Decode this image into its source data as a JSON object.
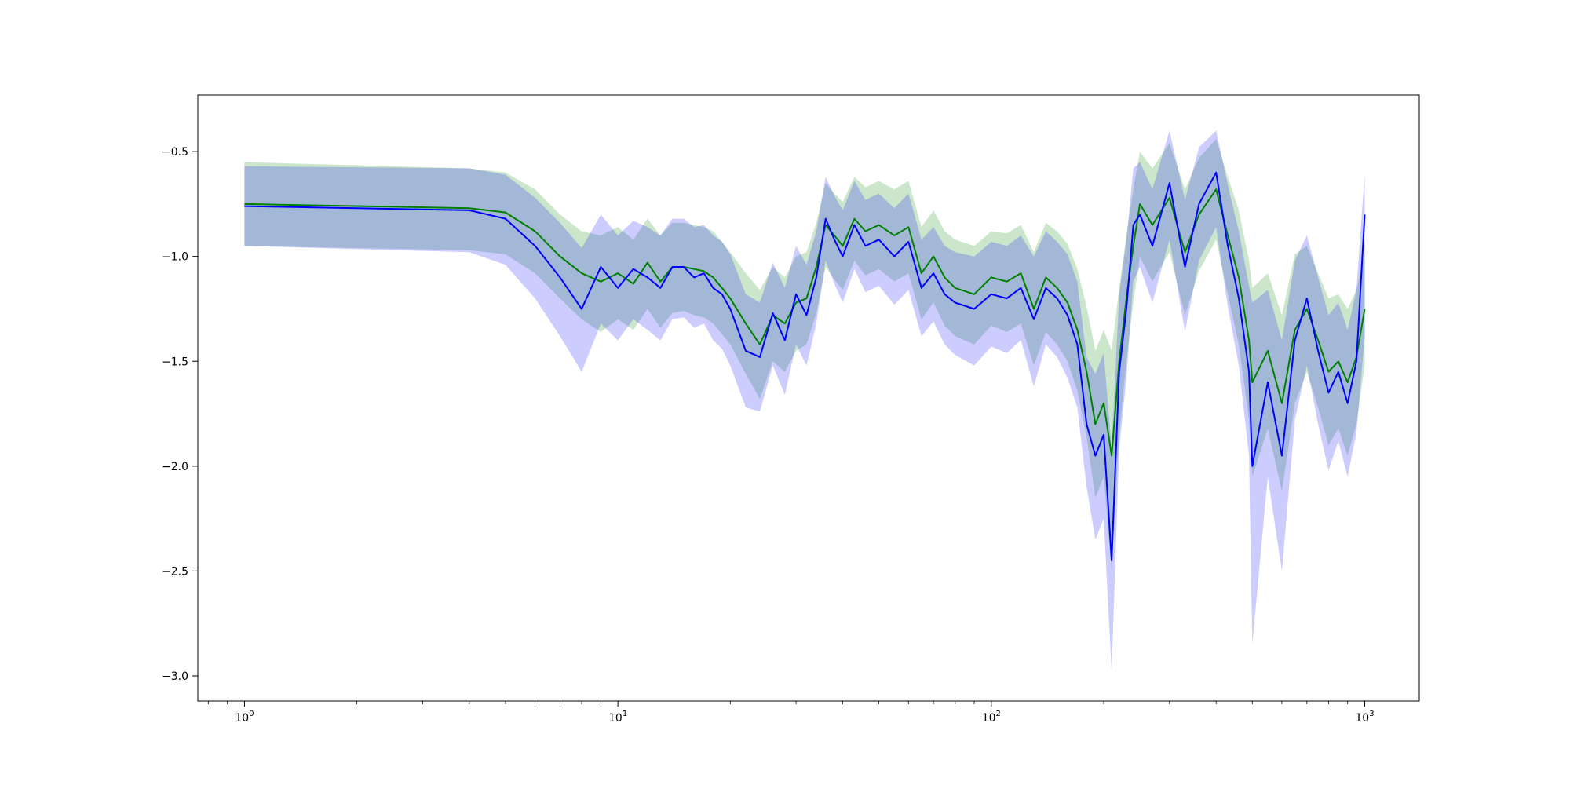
{
  "chart_data": {
    "type": "line",
    "title": "",
    "xlabel": "",
    "ylabel": "",
    "xscale": "log",
    "xlim": [
      0.75,
      1400
    ],
    "ylim": [
      -3.12,
      -0.23
    ],
    "grid": false,
    "legend": "none",
    "x_ticks": [
      {
        "value": 1,
        "base": "10",
        "exp": "0"
      },
      {
        "value": 10,
        "base": "10",
        "exp": "1"
      },
      {
        "value": 100,
        "base": "10",
        "exp": "2"
      },
      {
        "value": 1000,
        "base": "10",
        "exp": "3"
      }
    ],
    "y_ticks": [
      {
        "value": -0.5,
        "label": "−0.5"
      },
      {
        "value": -1.0,
        "label": "−1.0"
      },
      {
        "value": -1.5,
        "label": "−1.5"
      },
      {
        "value": -2.0,
        "label": "−2.0"
      },
      {
        "value": -2.5,
        "label": "−2.5"
      },
      {
        "value": -3.0,
        "label": "−3.0"
      }
    ],
    "series": [
      {
        "color": "#008000",
        "band_color": "#008000",
        "band_opacity": 0.2,
        "x": [
          1,
          4,
          5,
          6,
          7,
          8,
          9,
          10,
          11,
          12,
          13,
          14,
          15,
          16,
          17,
          18,
          19,
          20,
          22,
          24,
          26,
          28,
          30,
          32,
          34,
          36,
          38,
          40,
          43,
          46,
          50,
          55,
          60,
          65,
          70,
          75,
          80,
          90,
          100,
          110,
          120,
          130,
          140,
          150,
          160,
          170,
          180,
          190,
          200,
          210,
          220,
          230,
          240,
          250,
          270,
          300,
          330,
          360,
          400,
          430,
          460,
          490,
          500,
          550,
          600,
          650,
          700,
          750,
          800,
          850,
          900,
          950,
          1000
        ],
        "y": [
          -0.75,
          -0.77,
          -0.79,
          -0.88,
          -1.0,
          -1.08,
          -1.12,
          -1.08,
          -1.13,
          -1.03,
          -1.12,
          -1.05,
          -1.05,
          -1.06,
          -1.07,
          -1.1,
          -1.15,
          -1.2,
          -1.32,
          -1.42,
          -1.28,
          -1.32,
          -1.22,
          -1.2,
          -1.05,
          -0.85,
          -0.9,
          -0.95,
          -0.82,
          -0.88,
          -0.85,
          -0.9,
          -0.86,
          -1.08,
          -1.0,
          -1.1,
          -1.15,
          -1.18,
          -1.1,
          -1.12,
          -1.08,
          -1.25,
          -1.1,
          -1.15,
          -1.22,
          -1.35,
          -1.55,
          -1.8,
          -1.7,
          -1.95,
          -1.5,
          -1.2,
          -0.95,
          -0.75,
          -0.85,
          -0.72,
          -0.98,
          -0.8,
          -0.68,
          -0.9,
          -1.1,
          -1.4,
          -1.6,
          -1.45,
          -1.7,
          -1.35,
          -1.25,
          -1.4,
          -1.55,
          -1.5,
          -1.6,
          -1.48,
          -1.25
        ],
        "lower": [
          -0.95,
          -0.97,
          -0.99,
          -1.08,
          -1.2,
          -1.3,
          -1.36,
          -1.3,
          -1.35,
          -1.25,
          -1.34,
          -1.27,
          -1.26,
          -1.28,
          -1.29,
          -1.32,
          -1.37,
          -1.42,
          -1.56,
          -1.68,
          -1.5,
          -1.55,
          -1.45,
          -1.42,
          -1.27,
          -1.05,
          -1.11,
          -1.16,
          -1.02,
          -1.09,
          -1.06,
          -1.12,
          -1.08,
          -1.3,
          -1.22,
          -1.33,
          -1.38,
          -1.42,
          -1.33,
          -1.36,
          -1.32,
          -1.52,
          -1.36,
          -1.42,
          -1.5,
          -1.64,
          -1.86,
          -2.15,
          -2.05,
          -2.5,
          -1.85,
          -1.5,
          -1.22,
          -1.0,
          -1.12,
          -0.98,
          -1.28,
          -1.07,
          -0.92,
          -1.18,
          -1.42,
          -1.78,
          -2.05,
          -1.82,
          -2.12,
          -1.7,
          -1.55,
          -1.72,
          -1.9,
          -1.82,
          -1.95,
          -1.8,
          -1.52
        ],
        "upper": [
          -0.55,
          -0.58,
          -0.6,
          -0.68,
          -0.8,
          -0.88,
          -0.9,
          -0.86,
          -0.92,
          -0.82,
          -0.9,
          -0.84,
          -0.84,
          -0.85,
          -0.86,
          -0.88,
          -0.93,
          -0.98,
          -1.08,
          -1.16,
          -1.05,
          -1.1,
          -1.0,
          -0.98,
          -0.84,
          -0.65,
          -0.7,
          -0.74,
          -0.62,
          -0.67,
          -0.64,
          -0.68,
          -0.64,
          -0.86,
          -0.78,
          -0.88,
          -0.92,
          -0.95,
          -0.88,
          -0.89,
          -0.85,
          -0.98,
          -0.84,
          -0.88,
          -0.94,
          -1.06,
          -1.24,
          -1.45,
          -1.35,
          -1.45,
          -1.15,
          -0.9,
          -0.68,
          -0.5,
          -0.58,
          -0.46,
          -0.68,
          -0.53,
          -0.44,
          -0.62,
          -0.78,
          -1.02,
          -1.15,
          -1.08,
          -1.28,
          -0.99,
          -0.95,
          -1.08,
          -1.2,
          -1.18,
          -1.25,
          -1.16,
          -0.98
        ]
      },
      {
        "color": "#0000ff",
        "band_color": "#0000ff",
        "band_opacity": 0.2,
        "x": [
          1,
          4,
          5,
          6,
          7,
          8,
          9,
          10,
          11,
          12,
          13,
          14,
          15,
          16,
          17,
          18,
          19,
          20,
          22,
          24,
          26,
          28,
          30,
          32,
          34,
          36,
          38,
          40,
          43,
          46,
          50,
          55,
          60,
          65,
          70,
          75,
          80,
          90,
          100,
          110,
          120,
          130,
          140,
          150,
          160,
          170,
          180,
          190,
          200,
          210,
          220,
          230,
          240,
          250,
          270,
          300,
          330,
          360,
          400,
          430,
          460,
          490,
          500,
          550,
          600,
          650,
          700,
          750,
          800,
          850,
          900,
          950,
          1000
        ],
        "y": [
          -0.76,
          -0.78,
          -0.82,
          -0.95,
          -1.1,
          -1.25,
          -1.05,
          -1.15,
          -1.06,
          -1.1,
          -1.15,
          -1.05,
          -1.05,
          -1.1,
          -1.08,
          -1.15,
          -1.18,
          -1.25,
          -1.45,
          -1.48,
          -1.27,
          -1.4,
          -1.18,
          -1.28,
          -1.1,
          -0.82,
          -0.92,
          -1.0,
          -0.85,
          -0.95,
          -0.92,
          -1.0,
          -0.93,
          -1.15,
          -1.08,
          -1.18,
          -1.22,
          -1.25,
          -1.18,
          -1.2,
          -1.15,
          -1.3,
          -1.15,
          -1.2,
          -1.28,
          -1.42,
          -1.8,
          -1.95,
          -1.85,
          -2.45,
          -1.55,
          -1.25,
          -0.85,
          -0.8,
          -0.95,
          -0.65,
          -1.05,
          -0.75,
          -0.6,
          -0.95,
          -1.2,
          -1.55,
          -2.0,
          -1.6,
          -1.95,
          -1.4,
          -1.2,
          -1.45,
          -1.65,
          -1.55,
          -1.7,
          -1.5,
          -0.8
        ],
        "lower": [
          -0.95,
          -0.98,
          -1.04,
          -1.2,
          -1.38,
          -1.55,
          -1.32,
          -1.4,
          -1.3,
          -1.35,
          -1.4,
          -1.3,
          -1.29,
          -1.34,
          -1.32,
          -1.4,
          -1.44,
          -1.52,
          -1.72,
          -1.74,
          -1.52,
          -1.66,
          -1.42,
          -1.52,
          -1.32,
          -1.02,
          -1.13,
          -1.22,
          -1.06,
          -1.17,
          -1.14,
          -1.23,
          -1.16,
          -1.38,
          -1.31,
          -1.42,
          -1.47,
          -1.52,
          -1.43,
          -1.46,
          -1.4,
          -1.62,
          -1.42,
          -1.48,
          -1.58,
          -1.72,
          -2.1,
          -2.35,
          -2.25,
          -2.98,
          -1.92,
          -1.58,
          -1.12,
          -1.05,
          -1.22,
          -0.92,
          -1.36,
          -1.02,
          -0.86,
          -1.24,
          -1.52,
          -1.95,
          -2.85,
          -2.05,
          -2.5,
          -1.78,
          -1.52,
          -1.8,
          -2.02,
          -1.88,
          -2.05,
          -1.84,
          -1.38
        ],
        "upper": [
          -0.57,
          -0.58,
          -0.61,
          -0.72,
          -0.84,
          -0.96,
          -0.8,
          -0.9,
          -0.83,
          -0.86,
          -0.9,
          -0.82,
          -0.82,
          -0.86,
          -0.85,
          -0.9,
          -0.93,
          -0.99,
          -1.18,
          -1.22,
          -1.03,
          -1.15,
          -0.95,
          -1.04,
          -0.88,
          -0.62,
          -0.71,
          -0.78,
          -0.64,
          -0.73,
          -0.7,
          -0.77,
          -0.7,
          -0.92,
          -0.86,
          -0.95,
          -0.98,
          -1.0,
          -0.93,
          -0.95,
          -0.9,
          -1.0,
          -0.88,
          -0.93,
          -0.99,
          -1.12,
          -1.48,
          -1.56,
          -1.46,
          -1.92,
          -1.18,
          -0.92,
          -0.58,
          -0.55,
          -0.68,
          -0.4,
          -0.73,
          -0.48,
          -0.4,
          -0.66,
          -0.88,
          -1.14,
          -1.22,
          -1.16,
          -1.4,
          -1.02,
          -0.9,
          -1.1,
          -1.28,
          -1.22,
          -1.35,
          -1.16,
          -0.6
        ]
      }
    ]
  }
}
